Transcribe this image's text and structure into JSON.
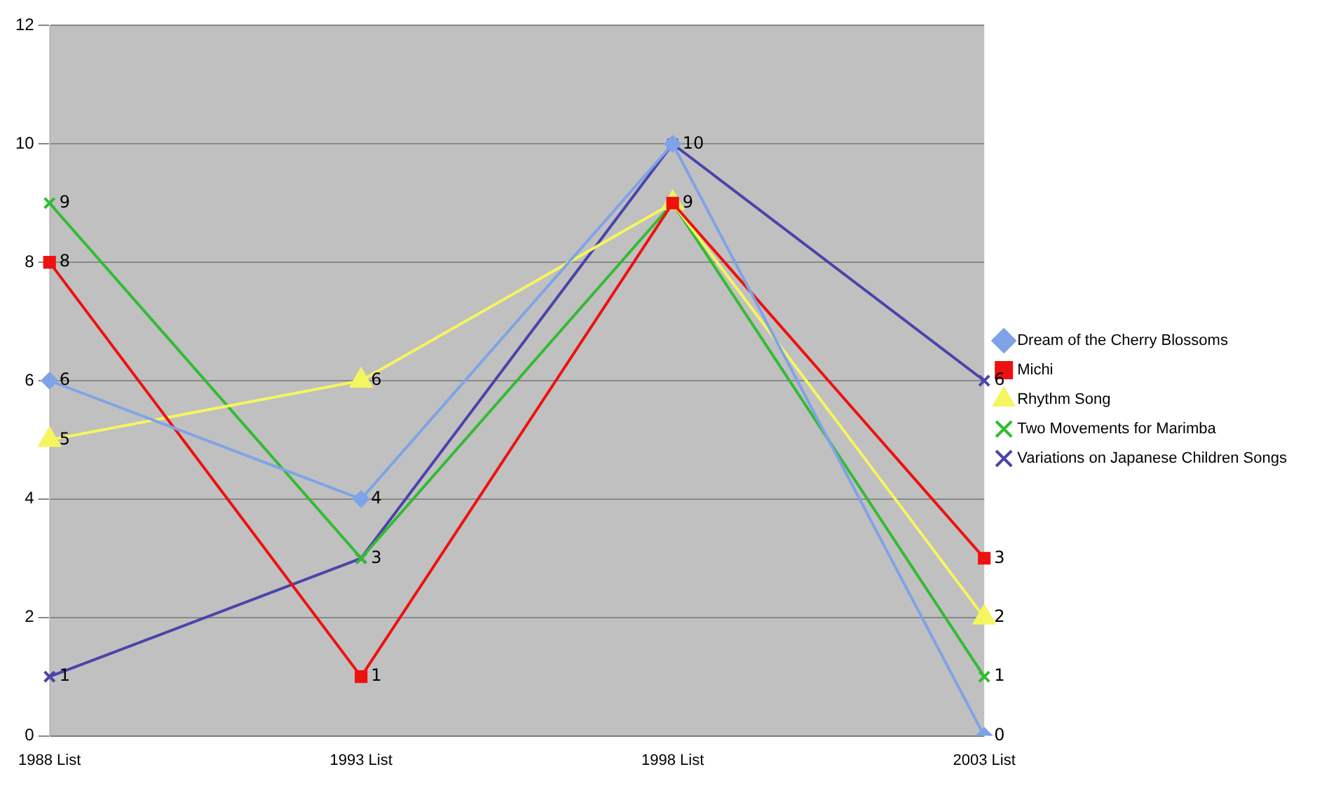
{
  "chart_data": {
    "type": "line",
    "categories": [
      "1988 List",
      "1993 List",
      "1998 List",
      "2003 List"
    ],
    "series": [
      {
        "name": "Dream of the Cherry Blossoms",
        "color": "#7fa3e6",
        "values": [
          6,
          4,
          10,
          0
        ],
        "marker": "diamond",
        "value_labels": [
          "6",
          "4",
          null,
          "0"
        ]
      },
      {
        "name": "Michi",
        "color": "#ee1111",
        "values": [
          8,
          1,
          9,
          3
        ],
        "marker": "square",
        "value_labels": [
          "8",
          "1",
          "9",
          "3"
        ]
      },
      {
        "name": "Rhythm Song",
        "color": "#f5f560",
        "values": [
          5,
          6,
          9,
          2
        ],
        "marker": "triangle",
        "value_labels": [
          "5",
          "6",
          null,
          "2"
        ]
      },
      {
        "name": "Two Movements for Marimba",
        "color": "#33bb33",
        "values": [
          9,
          3,
          9,
          1
        ],
        "marker": "cross",
        "value_labels": [
          "9",
          null,
          null,
          "1"
        ]
      },
      {
        "name": "Variations on Japanese Children Songs",
        "color": "#4a44aa",
        "values": [
          1,
          3,
          10,
          6
        ],
        "marker": "cross",
        "value_labels": [
          "1",
          "3",
          "10",
          "6"
        ]
      }
    ],
    "ylim": [
      0,
      12
    ],
    "yticks": [
      0,
      2,
      4,
      6,
      8,
      10,
      12
    ],
    "grid": "y",
    "legend": "right",
    "line_style": "solid"
  }
}
